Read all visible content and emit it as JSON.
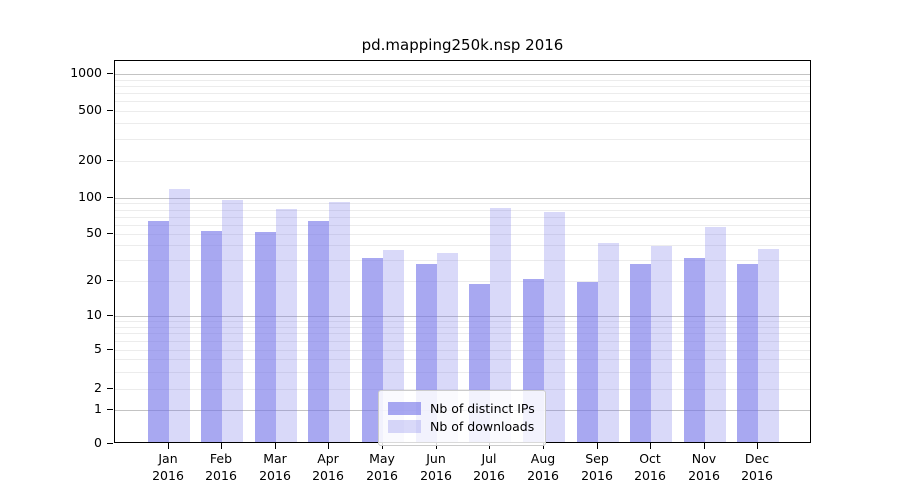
{
  "chart_data": {
    "type": "bar",
    "title": "pd.mapping250k.nsp 2016",
    "categories": [
      "Jan",
      "Feb",
      "Mar",
      "Apr",
      "May",
      "Jun",
      "Jul",
      "Aug",
      "Sep",
      "Oct",
      "Nov",
      "Dec"
    ],
    "category_year": "2016",
    "series": [
      {
        "name": "Nb of distinct IPs",
        "values": [
          62,
          51,
          50,
          62,
          30,
          27,
          18,
          20,
          19,
          27,
          30,
          27
        ],
        "color": "rgba(115,115,232,0.62)"
      },
      {
        "name": "Nb of downloads",
        "values": [
          113,
          93,
          78,
          89,
          35,
          33,
          79,
          73,
          40,
          38,
          55,
          36
        ],
        "color": "rgba(115,115,232,0.27)"
      }
    ],
    "yscale": "symlog",
    "yticks": [
      "0",
      "1",
      "2",
      "5",
      "10",
      "20",
      "50",
      "100",
      "200",
      "500",
      "1000"
    ],
    "ylim": [
      0,
      1300
    ],
    "grid": "on",
    "legend_position": "lower center",
    "colors": {
      "major_grid": "#c3c3c3",
      "minor_grid": "#ececec",
      "spine": "#000000",
      "background": "#ffffff"
    }
  }
}
